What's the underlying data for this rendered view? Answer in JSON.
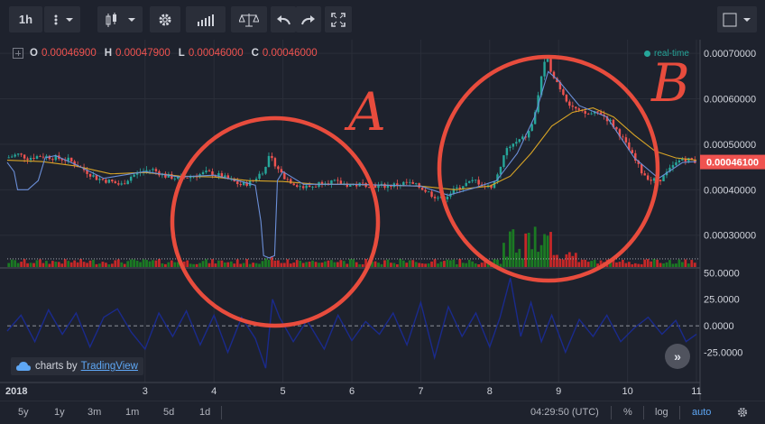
{
  "toolbar": {
    "interval": "1h",
    "icons": [
      "more-vert-icon",
      "chevron-down-icon",
      "candles-icon",
      "chevron-down-icon",
      "gear-icon",
      "indicators-icon",
      "compare-icon",
      "undo-icon",
      "redo-icon",
      "fullscreen-icon",
      "layout-icon",
      "chevron-down-icon"
    ]
  },
  "ohlc": {
    "o_label": "O",
    "o": "0.00046900",
    "h_label": "H",
    "h": "0.00047900",
    "l_label": "L",
    "l": "0.00046000",
    "c_label": "C",
    "c": "0.00046000"
  },
  "realtime_label": "real-time",
  "brand": {
    "prefix": "charts by",
    "name": "TradingView"
  },
  "scroll_label": "»",
  "annotations": {
    "a": "A",
    "b": "B"
  },
  "bottom": {
    "ranges": [
      "5y",
      "1y",
      "3m",
      "1m",
      "5d",
      "1d"
    ],
    "time": "04:29:50 (UTC)",
    "percent": "%",
    "log": "log",
    "auto": "auto"
  },
  "colors": {
    "bg": "#1e222d",
    "up": "#26a69a",
    "down": "#ef5350",
    "volume_up": "#1b7a23",
    "volume_down": "#c62828",
    "ma_fast": "#6b8fd8",
    "ma_slow": "#d8a426",
    "oscillator": "#1a2a8c",
    "annotation": "#e84c3d",
    "last_price_bg": "#ef5350"
  },
  "chart_data": {
    "type": "candlestick",
    "price_ticks": [
      "0.00070000",
      "0.00060000",
      "0.00050000",
      "0.00040000",
      "0.00030000"
    ],
    "price_range": [
      0.00023,
      0.00073
    ],
    "last_price": "0.00046100",
    "last_price_value": 0.000461,
    "x_ticks": [
      "2018",
      "3",
      "4",
      "5",
      "6",
      "7",
      "8",
      "9",
      "10",
      "11"
    ],
    "x_range": [
      1,
      11
    ],
    "oscillator_ticks": [
      "50.0000",
      "25.0000",
      "0.0000",
      "-25.0000"
    ],
    "oscillator_range": [
      -45,
      52
    ],
    "oscillator_zero": 0,
    "volume_reference": 0.000248,
    "price_series": [
      [
        1.0,
        0.00047
      ],
      [
        1.15,
        0.000478
      ],
      [
        1.3,
        0.00047
      ],
      [
        1.5,
        0.000475
      ],
      [
        1.7,
        0.00047
      ],
      [
        1.9,
        0.000465
      ],
      [
        2.0,
        0.000455
      ],
      [
        2.15,
        0.00044
      ],
      [
        2.3,
        0.000425
      ],
      [
        2.5,
        0.000418
      ],
      [
        2.65,
        0.00041
      ],
      [
        2.8,
        0.00043
      ],
      [
        2.95,
        0.00044
      ],
      [
        3.1,
        0.000445
      ],
      [
        3.3,
        0.00043
      ],
      [
        3.5,
        0.000425
      ],
      [
        3.7,
        0.00043
      ],
      [
        3.9,
        0.000438
      ],
      [
        4.1,
        0.00043
      ],
      [
        4.25,
        0.00042
      ],
      [
        4.4,
        0.00041
      ],
      [
        4.55,
        0.000418
      ],
      [
        4.7,
        0.00044
      ],
      [
        4.8,
        0.00047
      ],
      [
        4.9,
        0.000455
      ],
      [
        5.0,
        0.00043
      ],
      [
        5.15,
        0.000415
      ],
      [
        5.3,
        0.000405
      ],
      [
        5.45,
        0.000408
      ],
      [
        5.6,
        0.00042
      ],
      [
        5.8,
        0.000415
      ],
      [
        6.0,
        0.00041
      ],
      [
        6.2,
        0.000412
      ],
      [
        6.4,
        0.000408
      ],
      [
        6.6,
        0.00041
      ],
      [
        6.8,
        0.000415
      ],
      [
        7.0,
        0.000405
      ],
      [
        7.15,
        0.00039
      ],
      [
        7.3,
        0.00038
      ],
      [
        7.45,
        0.000395
      ],
      [
        7.6,
        0.00041
      ],
      [
        7.8,
        0.00042
      ],
      [
        7.95,
        0.000405
      ],
      [
        8.05,
        0.00041
      ],
      [
        8.15,
        0.00045
      ],
      [
        8.25,
        0.00049
      ],
      [
        8.4,
        0.000505
      ],
      [
        8.55,
        0.00052
      ],
      [
        8.65,
        0.00056
      ],
      [
        8.75,
        0.00065
      ],
      [
        8.82,
        0.00069
      ],
      [
        8.9,
        0.00066
      ],
      [
        9.0,
        0.00063
      ],
      [
        9.15,
        0.00059
      ],
      [
        9.3,
        0.00057
      ],
      [
        9.45,
        0.000565
      ],
      [
        9.6,
        0.00057
      ],
      [
        9.75,
        0.00055
      ],
      [
        9.9,
        0.00052
      ],
      [
        10.05,
        0.00048
      ],
      [
        10.2,
        0.00044
      ],
      [
        10.35,
        0.00042
      ],
      [
        10.5,
        0.000425
      ],
      [
        10.65,
        0.00045
      ],
      [
        10.8,
        0.00047
      ],
      [
        11.0,
        0.000461
      ]
    ],
    "ma_fast_series": [
      [
        1.0,
        0.00046
      ],
      [
        1.1,
        0.00044
      ],
      [
        1.15,
        0.0004
      ],
      [
        1.3,
        0.0004
      ],
      [
        1.45,
        0.00042
      ],
      [
        1.55,
        0.00047
      ],
      [
        1.7,
        0.000475
      ],
      [
        2.0,
        0.000455
      ],
      [
        2.4,
        0.000425
      ],
      [
        3.0,
        0.00044
      ],
      [
        3.5,
        0.000428
      ],
      [
        4.0,
        0.000432
      ],
      [
        4.4,
        0.000418
      ],
      [
        4.6,
        0.00041
      ],
      [
        4.68,
        0.00033
      ],
      [
        4.72,
        0.000255
      ],
      [
        4.8,
        0.00025
      ],
      [
        4.88,
        0.000255
      ],
      [
        4.92,
        0.00042
      ],
      [
        5.0,
        0.00044
      ],
      [
        5.3,
        0.000412
      ],
      [
        6.0,
        0.000412
      ],
      [
        7.0,
        0.000408
      ],
      [
        7.4,
        0.000388
      ],
      [
        7.8,
        0.000405
      ],
      [
        8.1,
        0.00042
      ],
      [
        8.4,
        0.00048
      ],
      [
        8.65,
        0.00056
      ],
      [
        8.85,
        0.00066
      ],
      [
        9.0,
        0.00064
      ],
      [
        9.3,
        0.000585
      ],
      [
        9.7,
        0.00056
      ],
      [
        10.1,
        0.00047
      ],
      [
        10.45,
        0.000425
      ],
      [
        10.8,
        0.00046
      ],
      [
        11.0,
        0.000462
      ]
    ],
    "ma_slow_series": [
      [
        1.0,
        0.000465
      ],
      [
        1.5,
        0.000462
      ],
      [
        2.0,
        0.000452
      ],
      [
        2.5,
        0.000435
      ],
      [
        3.0,
        0.000438
      ],
      [
        3.5,
        0.00043
      ],
      [
        4.0,
        0.000428
      ],
      [
        4.5,
        0.00042
      ],
      [
        5.0,
        0.000418
      ],
      [
        5.5,
        0.000412
      ],
      [
        6.0,
        0.000412
      ],
      [
        6.5,
        0.00041
      ],
      [
        7.0,
        0.000408
      ],
      [
        7.5,
        0.0004
      ],
      [
        8.0,
        0.000408
      ],
      [
        8.3,
        0.00043
      ],
      [
        8.6,
        0.00048
      ],
      [
        8.9,
        0.00054
      ],
      [
        9.2,
        0.00057
      ],
      [
        9.5,
        0.00058
      ],
      [
        9.8,
        0.00056
      ],
      [
        10.1,
        0.00052
      ],
      [
        10.4,
        0.000485
      ],
      [
        10.7,
        0.00047
      ],
      [
        11.0,
        0.000465
      ]
    ],
    "oscillator_series": [
      [
        1.0,
        -5
      ],
      [
        1.2,
        10
      ],
      [
        1.4,
        -15
      ],
      [
        1.6,
        15
      ],
      [
        1.8,
        -8
      ],
      [
        2.0,
        12
      ],
      [
        2.2,
        -20
      ],
      [
        2.4,
        8
      ],
      [
        2.6,
        16
      ],
      [
        2.8,
        -6
      ],
      [
        3.0,
        -22
      ],
      [
        3.2,
        12
      ],
      [
        3.4,
        -10
      ],
      [
        3.6,
        14
      ],
      [
        3.8,
        -18
      ],
      [
        4.0,
        10
      ],
      [
        4.2,
        -25
      ],
      [
        4.4,
        8
      ],
      [
        4.6,
        -12
      ],
      [
        4.75,
        -40
      ],
      [
        4.85,
        25
      ],
      [
        4.95,
        8
      ],
      [
        5.15,
        -15
      ],
      [
        5.35,
        5
      ],
      [
        5.6,
        -22
      ],
      [
        5.8,
        10
      ],
      [
        6.0,
        -14
      ],
      [
        6.2,
        4
      ],
      [
        6.4,
        -8
      ],
      [
        6.6,
        12
      ],
      [
        6.8,
        -18
      ],
      [
        7.0,
        22
      ],
      [
        7.2,
        -30
      ],
      [
        7.4,
        18
      ],
      [
        7.6,
        -10
      ],
      [
        7.8,
        12
      ],
      [
        8.0,
        -20
      ],
      [
        8.15,
        8
      ],
      [
        8.3,
        45
      ],
      [
        8.45,
        -10
      ],
      [
        8.6,
        22
      ],
      [
        8.75,
        -15
      ],
      [
        8.9,
        10
      ],
      [
        9.1,
        -25
      ],
      [
        9.3,
        6
      ],
      [
        9.5,
        -10
      ],
      [
        9.7,
        10
      ],
      [
        9.9,
        -15
      ],
      [
        10.1,
        -2
      ],
      [
        10.3,
        8
      ],
      [
        10.5,
        -8
      ],
      [
        10.7,
        5
      ],
      [
        10.85,
        -15
      ],
      [
        11.0,
        -8
      ]
    ]
  }
}
